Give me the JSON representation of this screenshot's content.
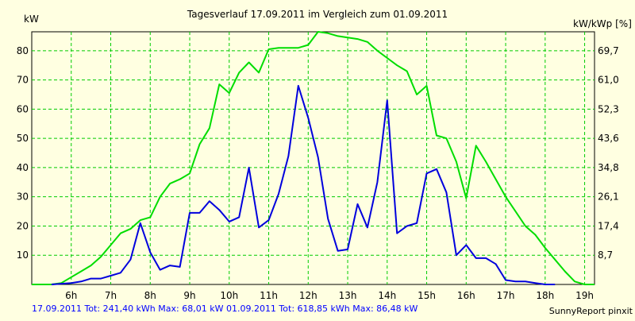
{
  "chart_data": {
    "type": "line",
    "title": "Tagesverlauf 17.09.2011 im Vergleich zum 01.09.2011",
    "ylabel_left": "kW",
    "ylabel_right": "kW/kWp [%]",
    "ylim": [
      0,
      86.48
    ],
    "yticks_left": [
      10,
      20,
      30,
      40,
      50,
      60,
      70,
      80
    ],
    "yticks_right": [
      "8,7",
      "17,4",
      "26,1",
      "34,8",
      "43,6",
      "52,3",
      "61,0",
      "69,7"
    ],
    "xlim": [
      5.0,
      19.25
    ],
    "xticks": [
      {
        "x": 6,
        "label": "6h"
      },
      {
        "x": 7,
        "label": "7h"
      },
      {
        "x": 8,
        "label": "8h"
      },
      {
        "x": 9,
        "label": "9h"
      },
      {
        "x": 10,
        "label": "10h"
      },
      {
        "x": 11,
        "label": "11h"
      },
      {
        "x": 12,
        "label": "12h"
      },
      {
        "x": 13,
        "label": "13h"
      },
      {
        "x": 14,
        "label": "14h"
      },
      {
        "x": 15,
        "label": "15h"
      },
      {
        "x": 16,
        "label": "16h"
      },
      {
        "x": 17,
        "label": "17h"
      },
      {
        "x": 18,
        "label": "18h"
      },
      {
        "x": 19,
        "label": "19h"
      }
    ],
    "grid": true,
    "series": [
      {
        "name": "01.09.2011",
        "color": "#00dd00",
        "points": [
          [
            5.0,
            0
          ],
          [
            5.5,
            0
          ],
          [
            5.75,
            0.5
          ],
          [
            6.0,
            2.5
          ],
          [
            6.25,
            4.5
          ],
          [
            6.5,
            6.5
          ],
          [
            6.75,
            9.5
          ],
          [
            7.0,
            13.5
          ],
          [
            7.25,
            17.5
          ],
          [
            7.5,
            19
          ],
          [
            7.75,
            22
          ],
          [
            8.0,
            23
          ],
          [
            8.25,
            30
          ],
          [
            8.5,
            34.5
          ],
          [
            8.75,
            36
          ],
          [
            9.0,
            38
          ],
          [
            9.25,
            48
          ],
          [
            9.5,
            53.5
          ],
          [
            9.75,
            68.5
          ],
          [
            10.0,
            65.5
          ],
          [
            10.25,
            72.5
          ],
          [
            10.5,
            76
          ],
          [
            10.75,
            72.5
          ],
          [
            11.0,
            80.5
          ],
          [
            11.25,
            81
          ],
          [
            11.5,
            81
          ],
          [
            11.75,
            81
          ],
          [
            12.0,
            82
          ],
          [
            12.25,
            86.48
          ],
          [
            12.5,
            86
          ],
          [
            12.75,
            85
          ],
          [
            13.0,
            84.5
          ],
          [
            13.25,
            84
          ],
          [
            13.5,
            83
          ],
          [
            13.75,
            80
          ],
          [
            14.0,
            77.5
          ],
          [
            14.25,
            75
          ],
          [
            14.5,
            73
          ],
          [
            14.75,
            65
          ],
          [
            15.0,
            68
          ],
          [
            15.25,
            51
          ],
          [
            15.5,
            50
          ],
          [
            15.75,
            42
          ],
          [
            16.0,
            29.5
          ],
          [
            16.25,
            47.5
          ],
          [
            16.5,
            42
          ],
          [
            16.75,
            36
          ],
          [
            17.0,
            30
          ],
          [
            17.25,
            25
          ],
          [
            17.5,
            20
          ],
          [
            17.75,
            17
          ],
          [
            18.0,
            12.5
          ],
          [
            18.25,
            8.5
          ],
          [
            18.5,
            4.5
          ],
          [
            18.75,
            1
          ],
          [
            19.0,
            0
          ],
          [
            19.25,
            0
          ]
        ]
      },
      {
        "name": "17.09.2011",
        "color": "#0000dd",
        "points": [
          [
            5.5,
            0
          ],
          [
            6.0,
            0.5
          ],
          [
            6.25,
            1
          ],
          [
            6.5,
            2
          ],
          [
            6.75,
            2
          ],
          [
            7.0,
            3
          ],
          [
            7.25,
            4
          ],
          [
            7.5,
            8.5
          ],
          [
            7.75,
            21
          ],
          [
            8.0,
            11
          ],
          [
            8.25,
            5
          ],
          [
            8.5,
            6.5
          ],
          [
            8.75,
            6
          ],
          [
            9.0,
            24.5
          ],
          [
            9.25,
            24.5
          ],
          [
            9.5,
            28.5
          ],
          [
            9.75,
            25.5
          ],
          [
            10.0,
            21.5
          ],
          [
            10.25,
            23
          ],
          [
            10.5,
            40
          ],
          [
            10.75,
            19.5
          ],
          [
            11.0,
            22
          ],
          [
            11.25,
            31
          ],
          [
            11.5,
            44
          ],
          [
            11.75,
            68.01
          ],
          [
            12.0,
            57
          ],
          [
            12.25,
            43.5
          ],
          [
            12.5,
            22.5
          ],
          [
            12.75,
            11.5
          ],
          [
            13.0,
            12
          ],
          [
            13.25,
            27.5
          ],
          [
            13.5,
            19.5
          ],
          [
            13.75,
            35
          ],
          [
            14.0,
            63
          ],
          [
            14.25,
            17.5
          ],
          [
            14.5,
            20
          ],
          [
            14.75,
            21
          ],
          [
            15.0,
            38
          ],
          [
            15.25,
            39.5
          ],
          [
            15.5,
            31.5
          ],
          [
            15.75,
            10
          ],
          [
            16.0,
            13.5
          ],
          [
            16.25,
            9
          ],
          [
            16.5,
            9
          ],
          [
            16.75,
            7
          ],
          [
            17.0,
            1.5
          ],
          [
            17.25,
            1
          ],
          [
            17.5,
            1
          ],
          [
            17.75,
            0.5
          ],
          [
            18.0,
            0
          ],
          [
            18.25,
            0
          ]
        ]
      }
    ],
    "footer": {
      "series1": "17.09.2011 Tot: 241,40 kWh Max: 68,01 kW",
      "series2": "01.09.2011 Tot: 618,85 kWh Max: 86,48 kW",
      "credit": "SunnyReport pinxit"
    }
  }
}
